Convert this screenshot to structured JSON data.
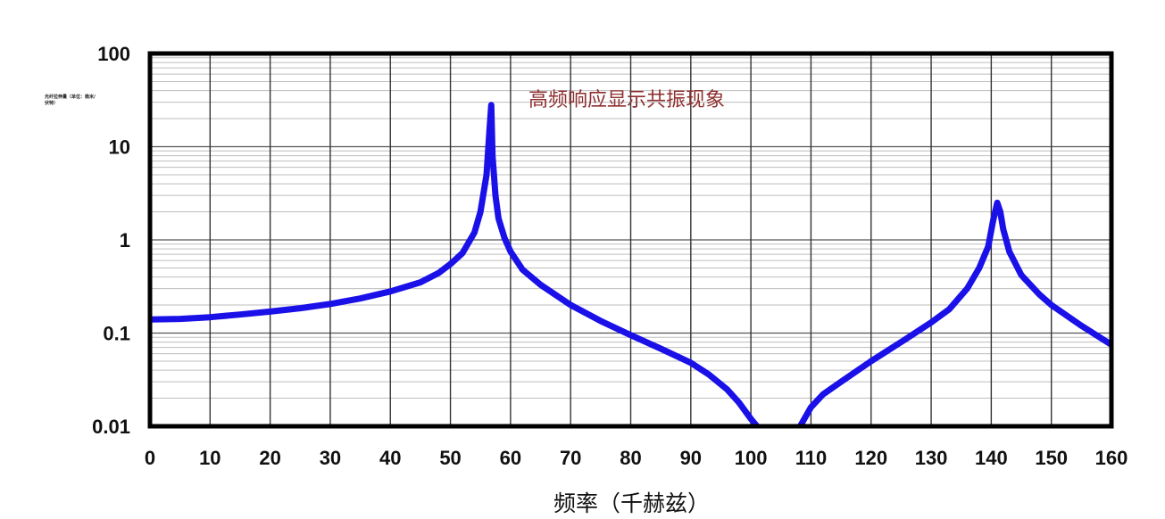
{
  "chart_data": {
    "type": "line",
    "title": "",
    "annotation": "高频响应显示共振现象",
    "xlabel": "频率（千赫兹）",
    "ylabel": "光纤拉伸量（单位：微米/伏特）",
    "xlim": [
      0,
      160
    ],
    "ylim": [
      0.01,
      100
    ],
    "yscale": "log",
    "grid": true,
    "x_ticks": [
      "0",
      "10",
      "20",
      "30",
      "40",
      "50",
      "60",
      "70",
      "80",
      "90",
      "100",
      "110",
      "120",
      "130",
      "140",
      "150",
      "160"
    ],
    "y_ticks": [
      "100",
      "10",
      "1",
      "0.1",
      "0.01"
    ],
    "series": [
      {
        "color": "#1a10e8",
        "segments": [
          {
            "x": [
              0,
              5,
              10,
              15,
              20,
              25,
              30,
              35,
              40,
              45,
              48,
              50,
              52,
              54,
              55,
              56,
              56.5,
              56.8,
              57,
              57.5,
              58,
              59,
              60,
              62,
              65,
              70,
              75,
              80,
              85,
              90,
              93,
              96,
              98,
              100,
              101.3
            ],
            "y": [
              0.14,
              0.142,
              0.148,
              0.158,
              0.17,
              0.185,
              0.205,
              0.235,
              0.28,
              0.35,
              0.44,
              0.55,
              0.72,
              1.2,
              2.0,
              5.0,
              15,
              28,
              8,
              3.0,
              1.7,
              1.05,
              0.75,
              0.48,
              0.33,
              0.2,
              0.135,
              0.095,
              0.068,
              0.048,
              0.036,
              0.025,
              0.018,
              0.012,
              0.0095
            ]
          },
          {
            "x": [
              108,
              110,
              112,
              115,
              120,
              125,
              130,
              133,
              136,
              138,
              139.5,
              140.3,
              141,
              141.5,
              142,
              143,
              145,
              148,
              150,
              155,
              160
            ],
            "y": [
              0.0095,
              0.016,
              0.022,
              0.03,
              0.05,
              0.08,
              0.13,
              0.18,
              0.3,
              0.5,
              0.85,
              1.6,
              2.5,
              2.0,
              1.3,
              0.75,
              0.42,
              0.26,
              0.2,
              0.12,
              0.075
            ]
          }
        ]
      }
    ]
  }
}
